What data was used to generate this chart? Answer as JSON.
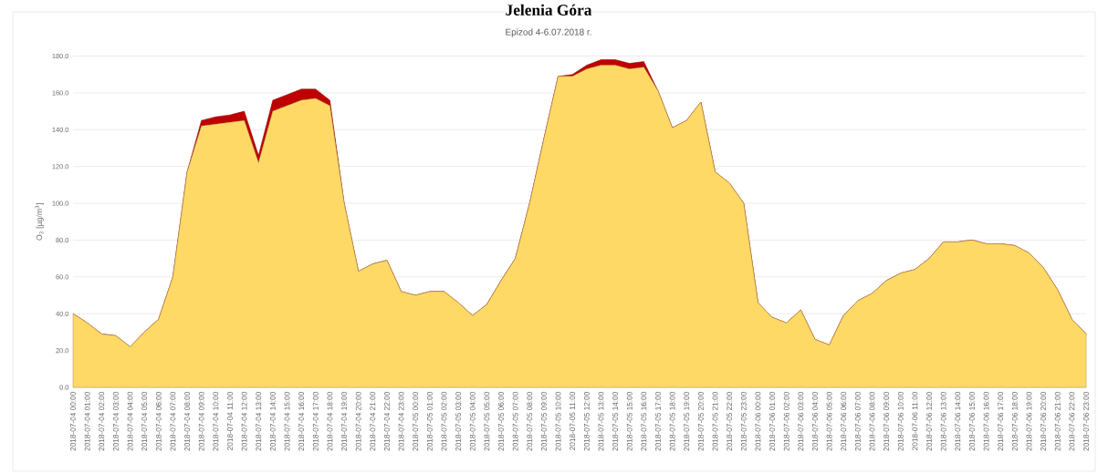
{
  "chart_data": {
    "type": "area",
    "title": "Jelenia Góra",
    "subtitle": "Epizod 4-6.07.2018 r.",
    "ylabel": "O$_{3}$ [µg/m$^{3}$]",
    "categories": [
      "2018-07-04 00:00",
      "2018-07-04 01:00",
      "2018-07-04 02:00",
      "2018-07-04 03:00",
      "2018-07-04 04:00",
      "2018-07-04 05:00",
      "2018-07-04 06:00",
      "2018-07-04 07:00",
      "2018-07-04 08:00",
      "2018-07-04 09:00",
      "2018-07-04 10:00",
      "2018-07-04 11:00",
      "2018-07-04 12:00",
      "2018-07-04 13:00",
      "2018-07-04 14:00",
      "2018-07-04 15:00",
      "2018-07-04 16:00",
      "2018-07-04 17:00",
      "2018-07-04 18:00",
      "2018-07-04 19:00",
      "2018-07-04 20:00",
      "2018-07-04 21:00",
      "2018-07-04 22:00",
      "2018-07-04 23:00",
      "2018-07-05 00:00",
      "2018-07-05 01:00",
      "2018-07-05 02:00",
      "2018-07-05 03:00",
      "2018-07-05 04:00",
      "2018-07-05 05:00",
      "2018-07-05 06:00",
      "2018-07-05 07:00",
      "2018-07-05 08:00",
      "2018-07-05 09:00",
      "2018-07-05 10:00",
      "2018-07-05 11:00",
      "2018-07-05 12:00",
      "2018-07-05 13:00",
      "2018-07-05 14:00",
      "2018-07-05 15:00",
      "2018-07-05 16:00",
      "2018-07-05 17:00",
      "2018-07-05 18:00",
      "2018-07-05 19:00",
      "2018-07-05 20:00",
      "2018-07-05 21:00",
      "2018-07-05 22:00",
      "2018-07-05 23:00",
      "2018-07-06 00:00",
      "2018-07-06 01:00",
      "2018-07-06 02:00",
      "2018-07-06 03:00",
      "2018-07-06 04:00",
      "2018-07-06 05:00",
      "2018-07-06 06:00",
      "2018-07-06 07:00",
      "2018-07-06 08:00",
      "2018-07-06 09:00",
      "2018-07-06 10:00",
      "2018-07-06 11:00",
      "2018-07-06 12:00",
      "2018-07-06 13:00",
      "2018-07-06 14:00",
      "2018-07-06 15:00",
      "2018-07-06 16:00",
      "2018-07-06 17:00",
      "2018-07-06 18:00",
      "2018-07-06 19:00",
      "2018-07-06 20:00",
      "2018-07-06 21:00",
      "2018-07-06 22:00",
      "2018-07-06 23:00"
    ],
    "series": [
      {
        "color": "#ffd966",
        "values": [
          40,
          35,
          29,
          28,
          22,
          30,
          37,
          60,
          117,
          142,
          143,
          144,
          145,
          122,
          150,
          153,
          156,
          157,
          153,
          100,
          63,
          67,
          69,
          52,
          50,
          52,
          52,
          46,
          39,
          45,
          58,
          70,
          100,
          135,
          169,
          169,
          173,
          175,
          175,
          173,
          174,
          161,
          141,
          145,
          155,
          117,
          111,
          100,
          46,
          38,
          35,
          42,
          26,
          23,
          39,
          47,
          51,
          58,
          62,
          64,
          70,
          79,
          79,
          80,
          78,
          78,
          77,
          73,
          65,
          53,
          37,
          29
        ]
      },
      {
        "color": "#c00000",
        "values": [
          0,
          0,
          0,
          0,
          0,
          0,
          0,
          0,
          0,
          3,
          4,
          4,
          5,
          4,
          6,
          6,
          6,
          5,
          3,
          0,
          0,
          0,
          0,
          0,
          0,
          0,
          0,
          0,
          0,
          0,
          0,
          0,
          0,
          0,
          0,
          1,
          2,
          3,
          3,
          3,
          3,
          0,
          0,
          0,
          0,
          0,
          0,
          0,
          0,
          0,
          0,
          0,
          0,
          0,
          0,
          0,
          0,
          0,
          0,
          0,
          0,
          0,
          0,
          0,
          0,
          0,
          0,
          0,
          0,
          0,
          0,
          0
        ]
      }
    ],
    "stacked": true,
    "grid": "y",
    "ylim": [
      0,
      180
    ],
    "yticks": [
      {
        "value": 0,
        "label": "0.0"
      },
      {
        "value": 20,
        "label": "20.0"
      },
      {
        "value": 40,
        "label": "40.0"
      },
      {
        "value": 60,
        "label": "60.0"
      },
      {
        "value": 80,
        "label": "80.0"
      },
      {
        "value": 100,
        "label": "100.0"
      },
      {
        "value": 120,
        "label": "120.0"
      },
      {
        "value": 140,
        "label": "140.0"
      },
      {
        "value": 160,
        "label": "160.0"
      },
      {
        "value": 180,
        "label": "180.0"
      }
    ]
  }
}
